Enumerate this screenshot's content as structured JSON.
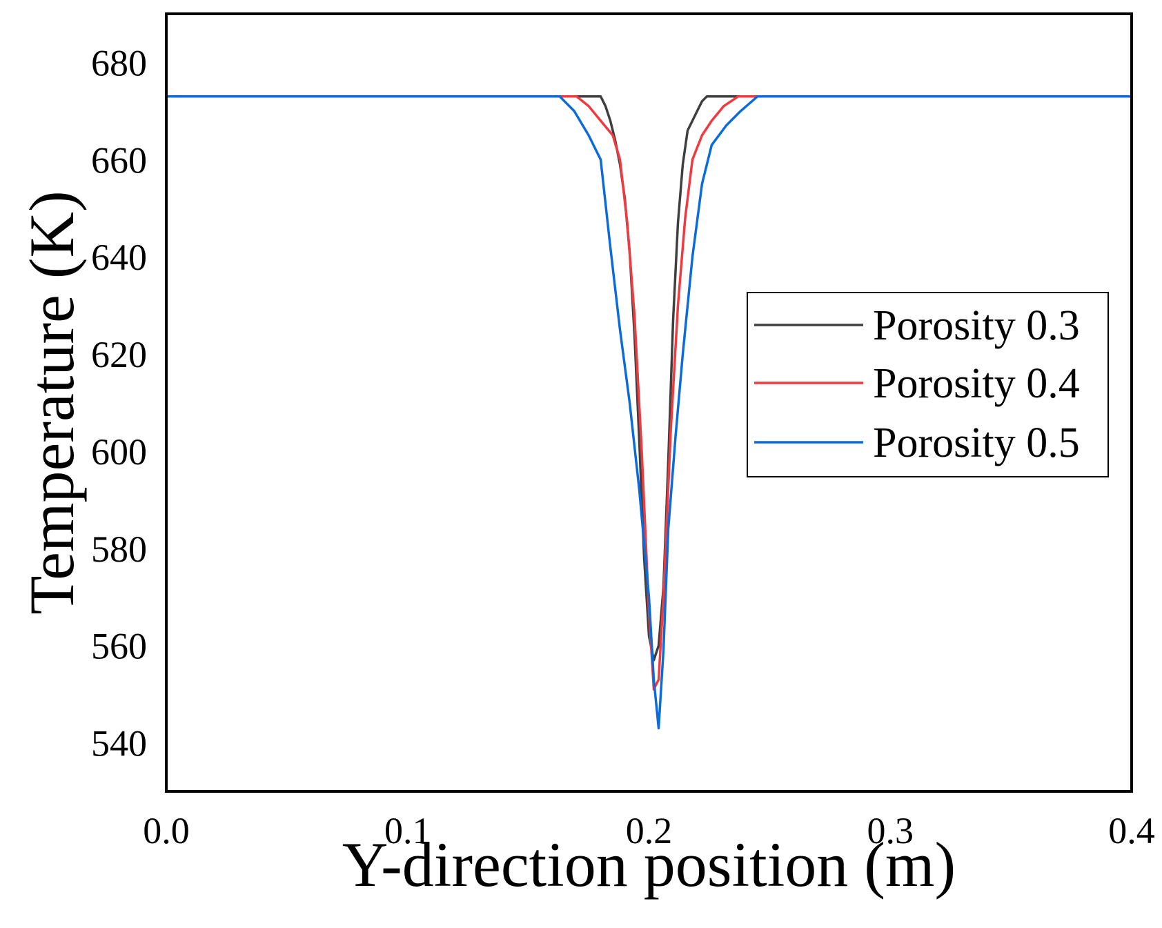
{
  "chart_data": {
    "type": "line",
    "title": "",
    "xlabel": "Y-direction position (m)",
    "ylabel": "Temperature (K)",
    "xlim": [
      0.0,
      0.4
    ],
    "ylim": [
      530,
      690
    ],
    "xticks": [
      0.0,
      0.1,
      0.2,
      0.3,
      0.4
    ],
    "xtick_labels": [
      "0.0",
      "0.1",
      "0.2",
      "0.3",
      "0.4"
    ],
    "yticks": [
      540,
      560,
      580,
      600,
      620,
      640,
      660,
      680
    ],
    "ytick_labels": [
      "540",
      "560",
      "580",
      "600",
      "620",
      "640",
      "660",
      "680"
    ],
    "grid": false,
    "legend_position": "center-right",
    "series": [
      {
        "name": "Porosity 0.3",
        "color": "#3f3f3f",
        "x": [
          0.0,
          0.18,
          0.182,
          0.184,
          0.186,
          0.188,
          0.19,
          0.192,
          0.194,
          0.196,
          0.198,
          0.2,
          0.202,
          0.204,
          0.206,
          0.208,
          0.21,
          0.212,
          0.214,
          0.216,
          0.218,
          0.22,
          0.222,
          0.224,
          0.226,
          0.228,
          0.23,
          0.4
        ],
        "y": [
          673,
          673,
          671,
          668,
          664,
          659,
          652,
          641,
          624,
          602,
          578,
          562,
          557,
          560,
          572,
          598,
          627,
          647,
          659,
          666,
          668,
          670,
          672,
          673,
          673,
          673,
          673,
          673
        ]
      },
      {
        "name": "Porosity 0.4",
        "color": "#f03a3f",
        "x": [
          0.0,
          0.17,
          0.175,
          0.18,
          0.185,
          0.188,
          0.191,
          0.194,
          0.197,
          0.2,
          0.202,
          0.204,
          0.206,
          0.209,
          0.212,
          0.215,
          0.218,
          0.222,
          0.226,
          0.231,
          0.237,
          0.4
        ],
        "y": [
          673,
          673,
          671,
          668,
          665,
          660,
          647,
          628,
          600,
          567,
          551,
          553,
          570,
          604,
          630,
          648,
          660,
          665,
          668,
          671,
          673,
          673
        ]
      },
      {
        "name": "Porosity 0.5",
        "color": "#0c6bdb",
        "x": [
          0.0,
          0.163,
          0.169,
          0.175,
          0.18,
          0.184,
          0.188,
          0.192,
          0.196,
          0.2,
          0.202,
          0.204,
          0.206,
          0.208,
          0.211,
          0.214,
          0.218,
          0.222,
          0.226,
          0.232,
          0.238,
          0.245,
          0.4
        ],
        "y": [
          673,
          673,
          670,
          665,
          660,
          642,
          625,
          610,
          592,
          570,
          553,
          543,
          559,
          584,
          603,
          620,
          640,
          655,
          663,
          667,
          670,
          673,
          673
        ]
      }
    ]
  }
}
